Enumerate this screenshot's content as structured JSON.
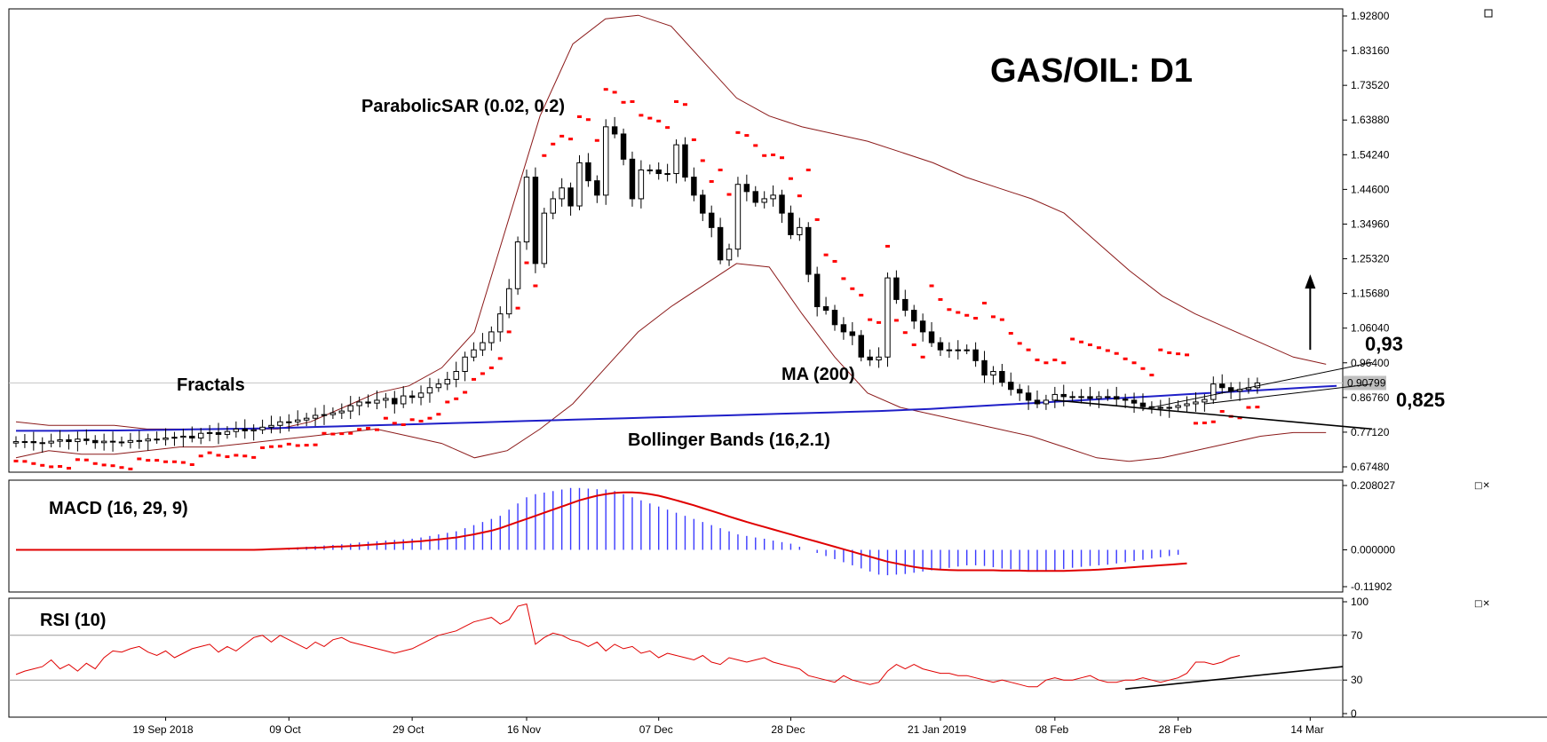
{
  "title": "GAS/OIL: D1",
  "annotations": {
    "parabolic_sar": "ParabolicSAR (0.02, 0.2)",
    "fractals": "Fractals",
    "ma": "MA (200)",
    "bollinger": "Bollinger Bands (16,2.1)",
    "level_high": "0,93",
    "level_low": "0,825",
    "macd": "MACD (16, 29, 9)",
    "rsi": "RSI (10)"
  },
  "colors": {
    "up_candle": "#ffffff",
    "down_candle": "#000000",
    "bollinger": "#8b1a1a",
    "ma": "#1f1fc8",
    "sar": "#ff0000",
    "fractal_up": "#00b400",
    "fractal_down": "#cc0000",
    "macd_hist": "#3a3aff",
    "macd_signal": "#e00000",
    "rsi_line": "#e00000"
  },
  "chart_data": [
    {
      "type": "candlestick",
      "name": "price",
      "title": "GAS/OIL: D1",
      "ylim": [
        0.6748,
        1.928
      ],
      "y_ticks": [
        "1.92800",
        "1.83160",
        "1.73520",
        "1.63880",
        "1.54240",
        "1.44600",
        "1.34960",
        "1.25320",
        "1.15680",
        "1.06040",
        "0.96400",
        "0.86760",
        "0.77120",
        "0.67480"
      ],
      "current_price_label": "0.90799",
      "current_price": 0.908,
      "x_ticks": [
        "19 Sep 2018",
        "09 Oct",
        "29 Oct",
        "16 Nov",
        "07 Dec",
        "28 Dec",
        "21 Jan 2019",
        "08 Feb",
        "28 Feb",
        "14 Mar"
      ],
      "x_tick_index": [
        17,
        31,
        45,
        58,
        73,
        88,
        105,
        118,
        132,
        147
      ],
      "bars": 151,
      "close": [
        0.745,
        0.745,
        0.742,
        0.741,
        0.746,
        0.75,
        0.745,
        0.752,
        0.748,
        0.742,
        0.746,
        0.744,
        0.743,
        0.748,
        0.747,
        0.752,
        0.751,
        0.755,
        0.757,
        0.76,
        0.755,
        0.768,
        0.77,
        0.765,
        0.773,
        0.78,
        0.775,
        0.778,
        0.785,
        0.79,
        0.8,
        0.8,
        0.805,
        0.81,
        0.818,
        0.82,
        0.825,
        0.83,
        0.845,
        0.855,
        0.852,
        0.86,
        0.865,
        0.85,
        0.872,
        0.868,
        0.88,
        0.895,
        0.905,
        0.918,
        0.94,
        0.98,
        1.0,
        1.02,
        1.05,
        1.1,
        1.17,
        1.3,
        1.48,
        1.24,
        1.38,
        1.42,
        1.45,
        1.4,
        1.52,
        1.47,
        1.43,
        1.62,
        1.6,
        1.53,
        1.42,
        1.5,
        1.5,
        1.49,
        1.49,
        1.57,
        1.48,
        1.43,
        1.38,
        1.34,
        1.25,
        1.28,
        1.46,
        1.44,
        1.41,
        1.42,
        1.43,
        1.38,
        1.32,
        1.34,
        1.21,
        1.12,
        1.11,
        1.07,
        1.05,
        1.04,
        0.98,
        0.972,
        0.98,
        1.2,
        1.14,
        1.11,
        1.08,
        1.05,
        1.02,
        1.0,
        1.0,
        1.0,
        1.0,
        0.97,
        0.93,
        0.94,
        0.91,
        0.89,
        0.88,
        0.86,
        0.85,
        0.86,
        0.876,
        0.87,
        0.868,
        0.87,
        0.865,
        0.87,
        0.87,
        0.863,
        0.86,
        0.852,
        0.842,
        0.84,
        0.838,
        0.84,
        0.845,
        0.85,
        0.855,
        0.862,
        0.905,
        0.895,
        0.885,
        0.89,
        0.895,
        0.908
      ],
      "open": [
        0.741,
        0.744,
        0.745,
        0.742,
        0.741,
        0.746,
        0.75,
        0.745,
        0.752,
        0.748,
        0.742,
        0.746,
        0.744,
        0.743,
        0.748,
        0.747,
        0.752,
        0.751,
        0.755,
        0.757,
        0.76,
        0.755,
        0.768,
        0.77,
        0.765,
        0.773,
        0.78,
        0.775,
        0.778,
        0.785,
        0.79,
        0.8,
        0.8,
        0.805,
        0.81,
        0.818,
        0.82,
        0.825,
        0.83,
        0.845,
        0.855,
        0.852,
        0.86,
        0.865,
        0.85,
        0.872,
        0.868,
        0.88,
        0.895,
        0.905,
        0.918,
        0.94,
        0.98,
        1.0,
        1.02,
        1.05,
        1.1,
        1.17,
        1.3,
        1.48,
        1.24,
        1.38,
        1.42,
        1.45,
        1.4,
        1.52,
        1.47,
        1.43,
        1.62,
        1.6,
        1.53,
        1.42,
        1.5,
        1.5,
        1.49,
        1.49,
        1.57,
        1.48,
        1.43,
        1.38,
        1.34,
        1.25,
        1.28,
        1.46,
        1.44,
        1.41,
        1.42,
        1.43,
        1.38,
        1.32,
        1.34,
        1.21,
        1.12,
        1.11,
        1.07,
        1.05,
        1.04,
        0.98,
        0.972,
        0.98,
        1.2,
        1.14,
        1.11,
        1.08,
        1.05,
        1.02,
        1.0,
        1.0,
        1.0,
        1.0,
        0.97,
        0.93,
        0.94,
        0.91,
        0.89,
        0.88,
        0.86,
        0.85,
        0.86,
        0.876,
        0.87,
        0.868,
        0.87,
        0.865,
        0.87,
        0.87,
        0.863,
        0.86,
        0.852,
        0.842,
        0.84,
        0.838,
        0.84,
        0.845,
        0.85,
        0.855,
        0.862,
        0.905,
        0.895,
        0.885,
        0.89,
        0.895
      ],
      "ma200": [
        0.775,
        0.775,
        0.775,
        0.776,
        0.776,
        0.777,
        0.778,
        0.779,
        0.78,
        0.781,
        0.782,
        0.784,
        0.786,
        0.788,
        0.79,
        0.792,
        0.794,
        0.796,
        0.798,
        0.8,
        0.802,
        0.804,
        0.806,
        0.808,
        0.81,
        0.812,
        0.814,
        0.816,
        0.818,
        0.82,
        0.822,
        0.824,
        0.826,
        0.828,
        0.83,
        0.833,
        0.836,
        0.84,
        0.844,
        0.848,
        0.852,
        0.856,
        0.86,
        0.864,
        0.868,
        0.872,
        0.876,
        0.88,
        0.884,
        0.888,
        0.892,
        0.896,
        0.9
      ],
      "ma200_range": [
        0,
        150
      ],
      "bollinger_upper": [
        0.8,
        0.79,
        0.79,
        0.79,
        0.78,
        0.78,
        0.78,
        0.78,
        0.78,
        0.8,
        0.84,
        0.88,
        0.9,
        0.95,
        1.05,
        1.35,
        1.65,
        1.85,
        1.92,
        1.93,
        1.9,
        1.8,
        1.7,
        1.65,
        1.62,
        1.6,
        1.58,
        1.55,
        1.52,
        1.48,
        1.45,
        1.42,
        1.38,
        1.3,
        1.22,
        1.15,
        1.1,
        1.06,
        1.02,
        0.98,
        0.96
      ],
      "bollinger_lower": [
        0.7,
        0.72,
        0.71,
        0.71,
        0.72,
        0.73,
        0.73,
        0.74,
        0.75,
        0.76,
        0.77,
        0.78,
        0.76,
        0.74,
        0.7,
        0.72,
        0.78,
        0.85,
        0.95,
        1.05,
        1.12,
        1.18,
        1.24,
        1.23,
        1.1,
        0.98,
        0.88,
        0.84,
        0.82,
        0.8,
        0.78,
        0.76,
        0.73,
        0.7,
        0.69,
        0.7,
        0.72,
        0.74,
        0.76,
        0.77,
        0.77
      ],
      "bollinger_step": 4,
      "trendlines": [
        {
          "from": [
            128,
            0.835
          ],
          "to": [
            150,
            0.965
          ]
        },
        {
          "from": [
            135,
            0.85
          ],
          "to": [
            150,
            0.905
          ]
        },
        {
          "from": [
            118,
            0.86
          ],
          "to": [
            150,
            0.78
          ]
        }
      ],
      "arrow": {
        "from": [
          147,
          1.0
        ],
        "to": [
          147,
          1.2
        ]
      }
    },
    {
      "type": "bar+line",
      "name": "MACD",
      "title": "MACD (16, 29, 9)",
      "ylim": [
        -0.11902,
        0.208027
      ],
      "y_ticks": [
        "0.208027",
        "0.000000",
        "-0.11902"
      ],
      "histogram": [
        0,
        0,
        0,
        0,
        0,
        0,
        0,
        0,
        0,
        0,
        0,
        0,
        0,
        0,
        0,
        0,
        0,
        0,
        0,
        0,
        0,
        0,
        0,
        0,
        0,
        0,
        0,
        0,
        0.002,
        0.004,
        0.005,
        0.006,
        0.008,
        0.01,
        0.012,
        0.014,
        0.016,
        0.018,
        0.02,
        0.024,
        0.026,
        0.028,
        0.03,
        0.032,
        0.034,
        0.036,
        0.04,
        0.045,
        0.05,
        0.055,
        0.06,
        0.07,
        0.08,
        0.09,
        0.1,
        0.11,
        0.13,
        0.15,
        0.17,
        0.18,
        0.185,
        0.19,
        0.195,
        0.2,
        0.2,
        0.198,
        0.196,
        0.195,
        0.19,
        0.18,
        0.17,
        0.16,
        0.15,
        0.14,
        0.13,
        0.12,
        0.11,
        0.1,
        0.09,
        0.08,
        0.07,
        0.06,
        0.05,
        0.045,
        0.04,
        0.036,
        0.03,
        0.025,
        0.02,
        0.01,
        0.0,
        -0.01,
        -0.02,
        -0.03,
        -0.04,
        -0.05,
        -0.06,
        -0.07,
        -0.08,
        -0.082,
        -0.08,
        -0.078,
        -0.074,
        -0.07,
        -0.066,
        -0.062,
        -0.058,
        -0.054,
        -0.05,
        -0.05,
        -0.052,
        -0.056,
        -0.06,
        -0.062,
        -0.064,
        -0.066,
        -0.068,
        -0.068,
        -0.066,
        -0.062,
        -0.058,
        -0.055,
        -0.052,
        -0.05,
        -0.048,
        -0.044,
        -0.04,
        -0.036,
        -0.032,
        -0.028,
        -0.024,
        -0.02,
        -0.016
      ],
      "signal": [
        0,
        0,
        0,
        0,
        0,
        0,
        0,
        0,
        0,
        0,
        0,
        0,
        0,
        0,
        0,
        0,
        0,
        0,
        0,
        0,
        0,
        0,
        0,
        0,
        0,
        0,
        0,
        0,
        0.001,
        0.002,
        0.003,
        0.004,
        0.005,
        0.006,
        0.007,
        0.008,
        0.01,
        0.011,
        0.012,
        0.014,
        0.016,
        0.018,
        0.02,
        0.022,
        0.024,
        0.026,
        0.028,
        0.031,
        0.034,
        0.037,
        0.04,
        0.045,
        0.05,
        0.056,
        0.062,
        0.07,
        0.08,
        0.09,
        0.1,
        0.11,
        0.12,
        0.13,
        0.14,
        0.15,
        0.16,
        0.168,
        0.175,
        0.18,
        0.184,
        0.186,
        0.186,
        0.184,
        0.18,
        0.175,
        0.168,
        0.16,
        0.152,
        0.144,
        0.135,
        0.126,
        0.117,
        0.108,
        0.099,
        0.09,
        0.082,
        0.074,
        0.066,
        0.058,
        0.05,
        0.042,
        0.034,
        0.026,
        0.018,
        0.01,
        0.002,
        -0.006,
        -0.014,
        -0.022,
        -0.03,
        -0.038,
        -0.044,
        -0.05,
        -0.055,
        -0.059,
        -0.062,
        -0.064,
        -0.065,
        -0.066,
        -0.066,
        -0.066,
        -0.066,
        -0.066,
        -0.067,
        -0.067,
        -0.067,
        -0.068,
        -0.068,
        -0.068,
        -0.068,
        -0.068,
        -0.067,
        -0.066,
        -0.065,
        -0.064,
        -0.062,
        -0.06,
        -0.058,
        -0.056,
        -0.054,
        -0.052,
        -0.05,
        -0.048,
        -0.046,
        -0.044
      ]
    },
    {
      "type": "line",
      "name": "RSI",
      "title": "RSI (10)",
      "ylim": [
        0,
        100
      ],
      "y_ticks": [
        "100",
        "70",
        "30",
        "0"
      ],
      "values": [
        35,
        38,
        40,
        42,
        48,
        40,
        44,
        38,
        45,
        40,
        50,
        56,
        55,
        58,
        60,
        55,
        52,
        56,
        50,
        54,
        58,
        60,
        62,
        55,
        60,
        56,
        62,
        68,
        70,
        64,
        70,
        66,
        62,
        58,
        64,
        60,
        66,
        68,
        64,
        62,
        60,
        58,
        56,
        54,
        56,
        58,
        62,
        66,
        70,
        72,
        74,
        78,
        82,
        84,
        86,
        80,
        84,
        96,
        98,
        62,
        68,
        72,
        70,
        66,
        64,
        60,
        64,
        56,
        62,
        58,
        60,
        54,
        56,
        50,
        54,
        52,
        50,
        48,
        52,
        46,
        44,
        50,
        48,
        46,
        48,
        50,
        46,
        44,
        42,
        40,
        34,
        32,
        30,
        28,
        34,
        30,
        28,
        26,
        28,
        38,
        44,
        40,
        44,
        40,
        38,
        36,
        36,
        34,
        34,
        32,
        30,
        28,
        30,
        28,
        26,
        24,
        24,
        30,
        32,
        30,
        30,
        32,
        34,
        30,
        28,
        28,
        30,
        30,
        32,
        30,
        28,
        30,
        32,
        36,
        46,
        46,
        44,
        46,
        50,
        52
      ]
    }
  ]
}
